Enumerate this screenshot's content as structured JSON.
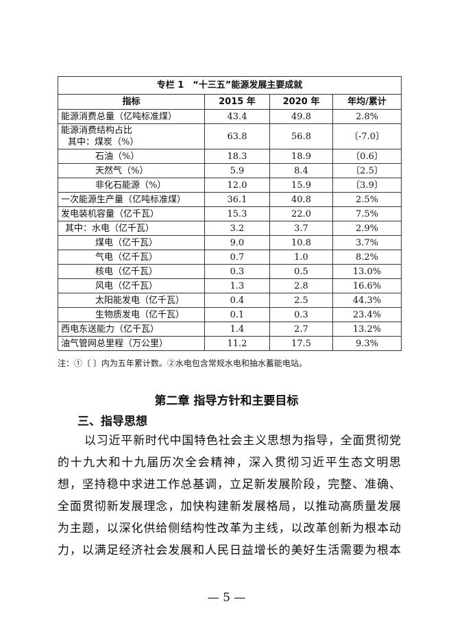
{
  "table": {
    "caption": "专栏 1　“十三五”能源发展主要成就",
    "headers": [
      "指标",
      "2015 年",
      "2020 年",
      "年均/累计"
    ],
    "rows": [
      {
        "label": "能源消费总量（亿吨标准煤）",
        "indent": 0,
        "v2015": "43.4",
        "v2020": "49.8",
        "change": "2.8%"
      },
      {
        "label": "能源消费结构占比",
        "label2": "其中：煤炭（%）",
        "indent": 0,
        "v2015": "63.8",
        "v2020": "56.8",
        "change": "〔-7.0〕"
      },
      {
        "label": "石油（%）",
        "indent": 2,
        "v2015": "18.3",
        "v2020": "18.9",
        "change": "〔0.6〕"
      },
      {
        "label": "天然气（%）",
        "indent": 2,
        "v2015": "5.9",
        "v2020": "8.4",
        "change": "〔2.5〕"
      },
      {
        "label": "非化石能源（%）",
        "indent": 2,
        "v2015": "12.0",
        "v2020": "15.9",
        "change": "〔3.9〕"
      },
      {
        "label": "一次能源生产量（亿吨标准煤）",
        "indent": 0,
        "v2015": "36.1",
        "v2020": "40.8",
        "change": "2.5%"
      },
      {
        "label": "发电装机容量（亿千瓦）",
        "indent": 0,
        "v2015": "15.3",
        "v2020": "22.0",
        "change": "7.5%"
      },
      {
        "label": "其中：水电（亿千瓦）",
        "indent": 1,
        "v2015": "3.2",
        "v2020": "3.7",
        "change": "2.9%"
      },
      {
        "label": "煤电（亿千瓦）",
        "indent": 2,
        "v2015": "9.0",
        "v2020": "10.8",
        "change": "3.7%"
      },
      {
        "label": "气电（亿千瓦）",
        "indent": 2,
        "v2015": "0.7",
        "v2020": "1.0",
        "change": "8.2%"
      },
      {
        "label": "核电（亿千瓦）",
        "indent": 2,
        "v2015": "0.3",
        "v2020": "0.5",
        "change": "13.0%"
      },
      {
        "label": "风电（亿千瓦）",
        "indent": 2,
        "v2015": "1.3",
        "v2020": "2.8",
        "change": "16.6%"
      },
      {
        "label": "太阳能发电（亿千瓦）",
        "indent": 2,
        "v2015": "0.4",
        "v2020": "2.5",
        "change": "44.3%"
      },
      {
        "label": "生物质发电（亿千瓦）",
        "indent": 2,
        "v2015": "0.1",
        "v2020": "0.3",
        "change": "23.4%"
      },
      {
        "label": "西电东送能力（亿千瓦）",
        "indent": 0,
        "v2015": "1.4",
        "v2020": "2.7",
        "change": "13.2%"
      },
      {
        "label": "油气管网总里程（万公里）",
        "indent": 0,
        "v2015": "11.2",
        "v2020": "17.5",
        "change": "9.3%"
      }
    ],
    "note": "注：①〔 〕内为五年累计数。②水电包含常规水电和抽水蓄能电站。"
  },
  "chapter_title": "第二章  指导方针和主要目标",
  "section_title": "三、指导思想",
  "paragraph_lines": [
    "以习近平新时代中国特色社会主义思想为指导，全面贯彻党",
    "的十九大和十九届历次全会精神，深入贯彻习近平生态文明思",
    "想，坚持稳中求进工作总基调，立足新发展阶段，完整、准确、",
    "全面贯彻新发展理念，加快构建新发展格局，以推动高质量发展",
    "为主题，以深化供给侧结构性改革为主线，以改革创新为根本动",
    "力，以满足经济社会发展和人民日益增长的美好生活需要为根本"
  ],
  "page_number": "— 5 —"
}
